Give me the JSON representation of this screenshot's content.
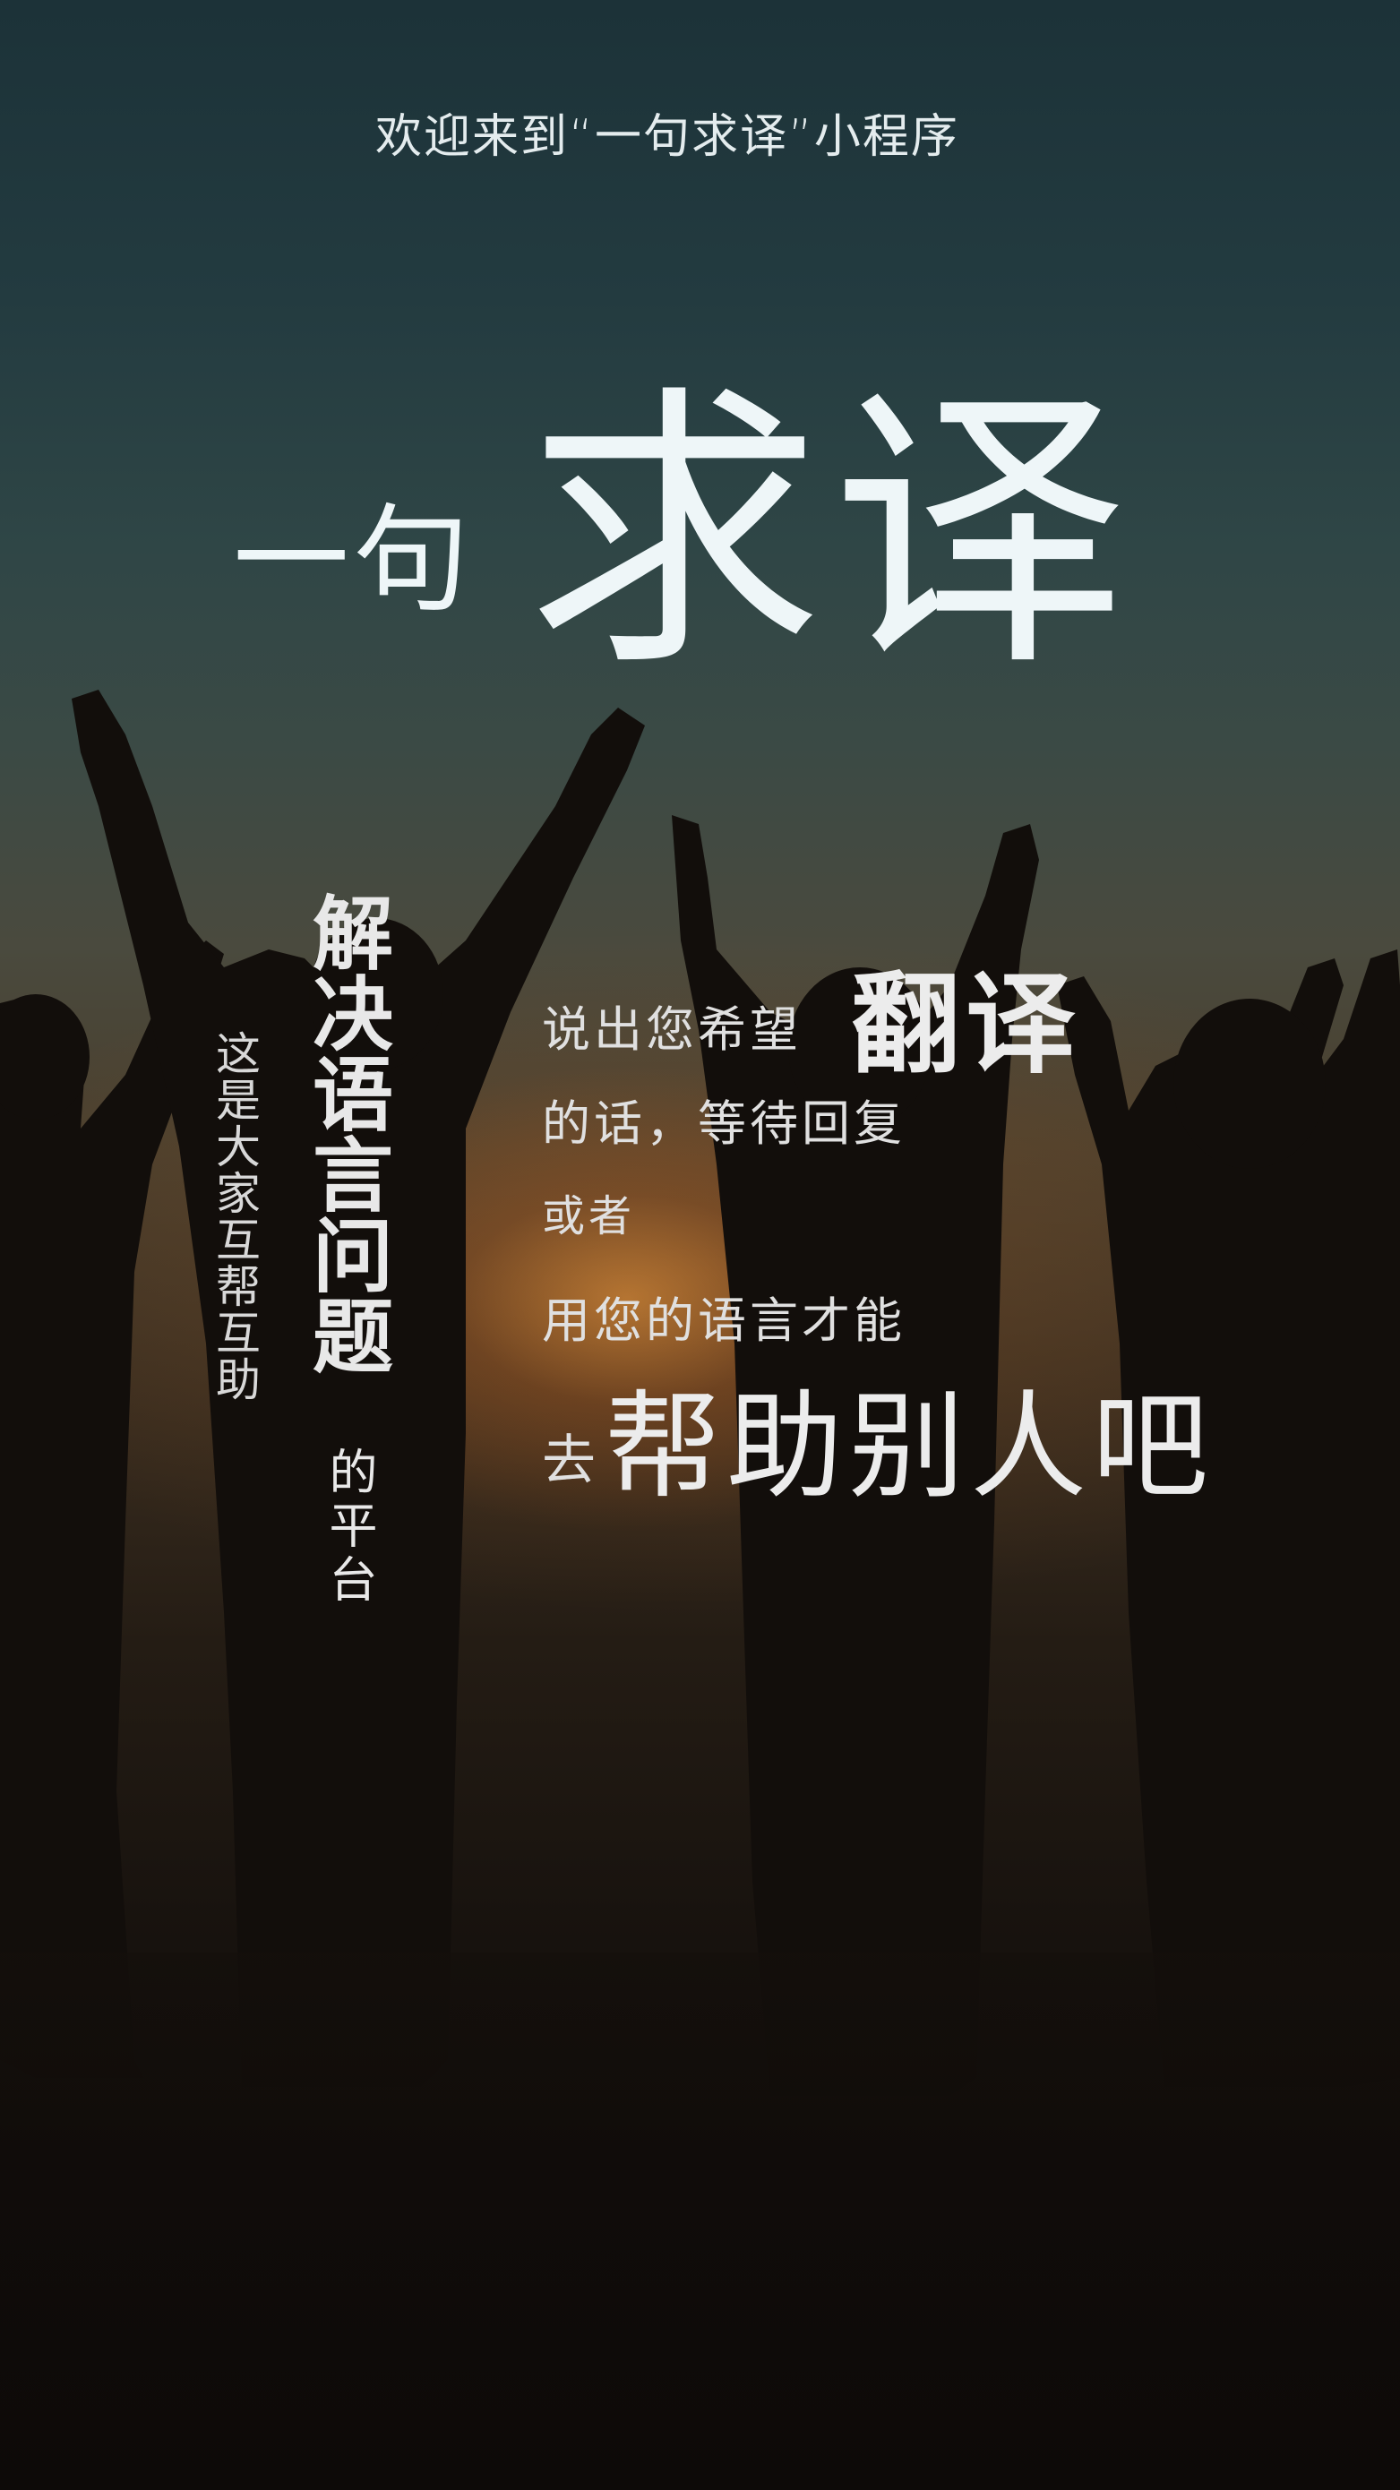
{
  "welcome_text": "欢迎来到“一句求译”小程序",
  "logo": {
    "small": "一句",
    "big": "求译"
  },
  "tagline": {
    "left_vertical": "这是大家互帮互助",
    "main_vertical": "解决语言问题",
    "main_vertical_suffix": "的平台"
  },
  "description": {
    "line1": "说出您希望",
    "line1_emphasis": "翻译",
    "line2": "的话，等待回复",
    "line3": "或者",
    "line4": "用您的语言才能",
    "line5_prefix": "去",
    "line5_emphasis": "帮助别人吧"
  },
  "colors": {
    "sky_top": "#1c3238",
    "sunset_glow": "#ffa03c",
    "ground": "#100c0a",
    "text_primary": "#eef6f8"
  }
}
